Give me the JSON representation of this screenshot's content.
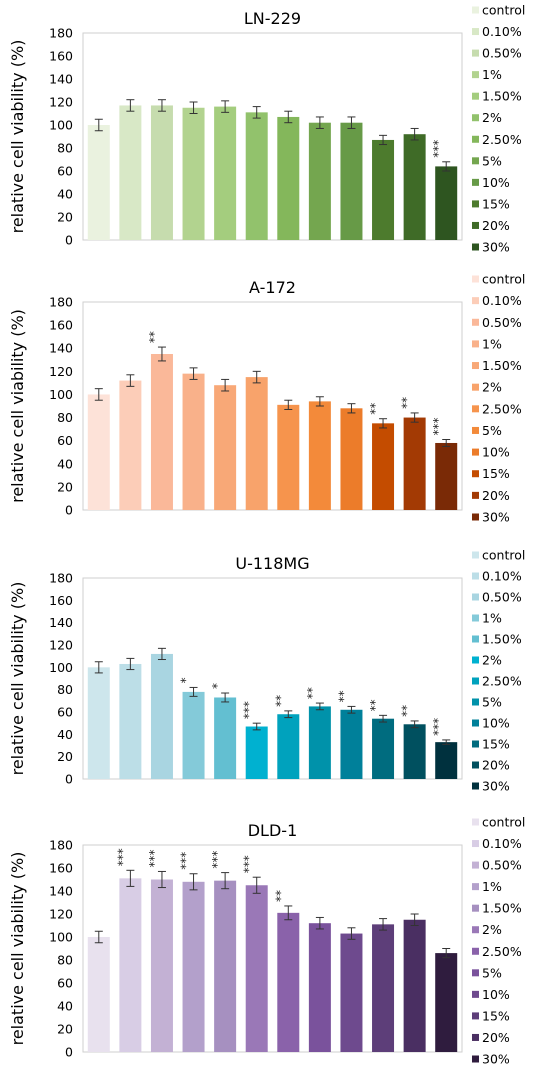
{
  "chart_data": [
    {
      "type": "bar",
      "title": "LN-229",
      "ylabel": "relative cell viability (%)",
      "ylim": [
        0,
        180
      ],
      "yticks": [
        "0",
        "20",
        "40",
        "60",
        "80",
        "100",
        "120",
        "140",
        "160",
        "180"
      ],
      "grid": false,
      "legend_position": "right",
      "categories": [
        "control",
        "0.10%",
        "0.50%",
        "1%",
        "1.50%",
        "2%",
        "2.50%",
        "5%",
        "10%",
        "15%",
        "20%",
        "30%"
      ],
      "values": [
        100,
        117,
        117,
        115,
        116,
        111,
        107,
        102,
        102,
        87,
        92,
        64
      ],
      "errors": [
        5,
        5,
        5,
        5,
        5,
        5,
        5,
        5,
        5,
        4,
        5,
        4
      ],
      "significance": [
        "",
        "",
        "",
        "",
        "",
        "",
        "",
        "",
        "",
        "",
        "",
        "***"
      ],
      "colors": [
        "#eaf2df",
        "#d8e8c6",
        "#c6dcae",
        "#b2d38f",
        "#a4cd7e",
        "#92c26c",
        "#84b75b",
        "#74a64f",
        "#679a47",
        "#4d7b2d",
        "#3f6b27",
        "#2e5520"
      ]
    },
    {
      "type": "bar",
      "title": "A-172",
      "ylabel": "relative cell viability (%)",
      "ylim": [
        0,
        180
      ],
      "yticks": [
        "0",
        "20",
        "40",
        "60",
        "80",
        "100",
        "120",
        "140",
        "160",
        "180"
      ],
      "grid": false,
      "legend_position": "right",
      "categories": [
        "control",
        "0.10%",
        "0.50%",
        "1%",
        "1.50%",
        "2%",
        "2.50%",
        "5%",
        "10%",
        "15%",
        "20%",
        "30%"
      ],
      "values": [
        100,
        112,
        135,
        118,
        108,
        115,
        91,
        94,
        88,
        75,
        80,
        58
      ],
      "errors": [
        5,
        5,
        6,
        5,
        5,
        5,
        4,
        4,
        4,
        4,
        4,
        3
      ],
      "significance": [
        "",
        "",
        "**",
        "",
        "",
        "",
        "",
        "",
        "",
        "**",
        "**",
        "***"
      ],
      "colors": [
        "#fde2d8",
        "#fccdb8",
        "#fab899",
        "#f9b18a",
        "#f8a877",
        "#f8a36b",
        "#f6944d",
        "#f38a3a",
        "#ec7c2a",
        "#c44c00",
        "#a33a04",
        "#7a2a06"
      ]
    },
    {
      "type": "bar",
      "title": "U-118MG",
      "ylabel": "relative cell viability (%)",
      "ylim": [
        0,
        180
      ],
      "yticks": [
        "0",
        "20",
        "40",
        "60",
        "80",
        "100",
        "120",
        "140",
        "160",
        "180"
      ],
      "grid": false,
      "legend_position": "right",
      "categories": [
        "control",
        "0.10%",
        "0.50%",
        "1%",
        "1.50%",
        "2%",
        "2.50%",
        "5%",
        "10%",
        "15%",
        "20%",
        "30%"
      ],
      "values": [
        100,
        103,
        112,
        78,
        73,
        47,
        58,
        65,
        62,
        54,
        49,
        33
      ],
      "errors": [
        5,
        5,
        5,
        4,
        4,
        3,
        3,
        3,
        3,
        3,
        3,
        2
      ],
      "significance": [
        "",
        "",
        "",
        "*",
        "*",
        "***",
        "**",
        "**",
        "**",
        "**",
        "**",
        "***"
      ],
      "colors": [
        "#cde6ec",
        "#bcdee7",
        "#a9d5e1",
        "#84cad9",
        "#63bfd1",
        "#00b1d0",
        "#00a2bd",
        "#0092aa",
        "#00809a",
        "#006c7f",
        "#00505f",
        "#00313e"
      ]
    },
    {
      "type": "bar",
      "title": "DLD-1",
      "ylabel": "relative cell viability (%)",
      "ylim": [
        0,
        180
      ],
      "yticks": [
        "0",
        "20",
        "40",
        "60",
        "80",
        "100",
        "120",
        "140",
        "160",
        "180"
      ],
      "grid": false,
      "legend_position": "right",
      "categories": [
        "control",
        "0.10%",
        "0.50%",
        "1%",
        "1.50%",
        "2%",
        "2.50%",
        "5%",
        "10%",
        "15%",
        "20%",
        "30%"
      ],
      "values": [
        100,
        151,
        150,
        148,
        149,
        145,
        121,
        112,
        103,
        111,
        115,
        86
      ],
      "errors": [
        5,
        7,
        7,
        7,
        7,
        7,
        6,
        5,
        5,
        5,
        5,
        4
      ],
      "significance": [
        "",
        "***",
        "***",
        "***",
        "***",
        "***",
        "**",
        "",
        "",
        "",
        "",
        ""
      ],
      "colors": [
        "#e8e1ee",
        "#d8cde5",
        "#c3b1d4",
        "#b3a0cb",
        "#a690c0",
        "#9a78b7",
        "#8a62aa",
        "#7a529c",
        "#6e4a8e",
        "#5d3e79",
        "#4a2f62",
        "#2f1c3e"
      ]
    }
  ]
}
